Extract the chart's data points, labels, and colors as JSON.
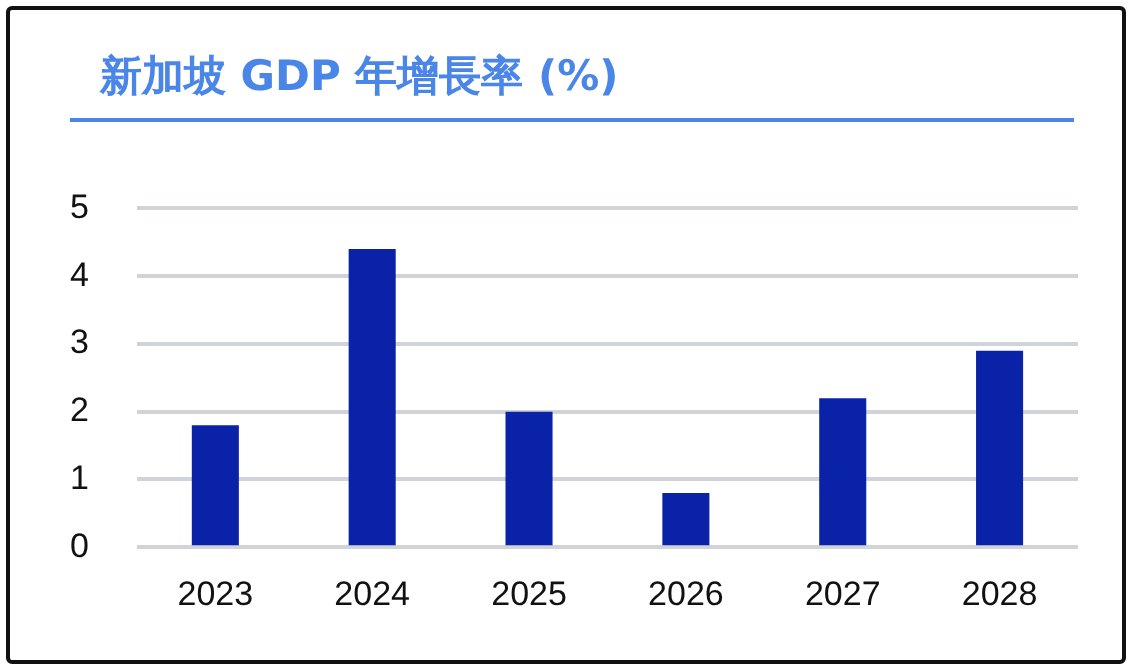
{
  "chart_data": {
    "type": "bar",
    "title": "新加坡 GDP 年增長率 (%)",
    "categories": [
      "2023",
      "2024",
      "2025",
      "2026",
      "2027",
      "2028"
    ],
    "values": [
      1.8,
      4.4,
      2.0,
      0.8,
      2.2,
      2.9
    ],
    "color": "#0a22a8",
    "ylim": [
      0,
      5
    ],
    "yticks": [
      0,
      1,
      2,
      3,
      4,
      5
    ],
    "grid": "y",
    "legend": false
  }
}
